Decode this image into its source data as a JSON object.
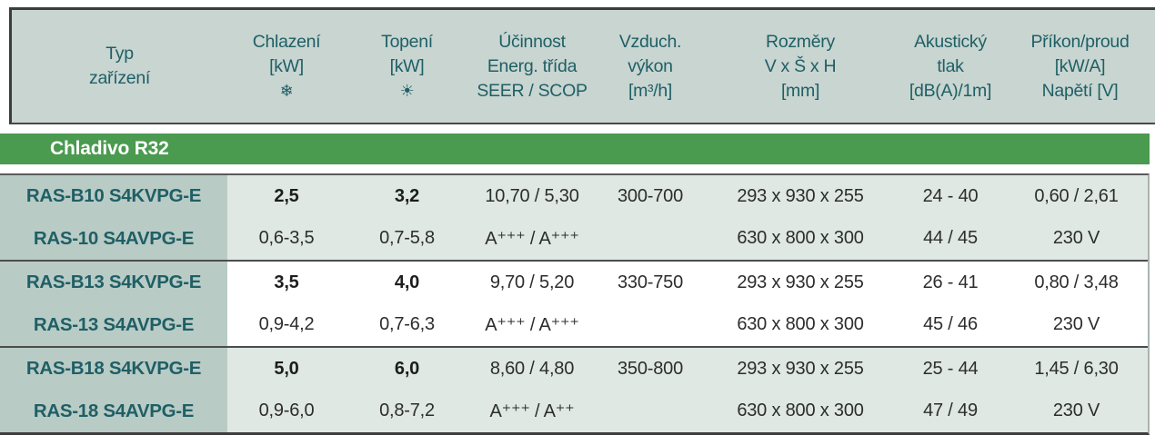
{
  "table": {
    "section_header": "Chladivo R32",
    "columns": [
      {
        "id": "typ",
        "line1": "Typ",
        "line2": "zařízení",
        "line3": ""
      },
      {
        "id": "chlazeni",
        "line1": "Chlazení",
        "line2": "[kW]",
        "line3": "",
        "icon": "❄",
        "icon_name": "snowflake-icon"
      },
      {
        "id": "topeni",
        "line1": "Topení",
        "line2": "[kW]",
        "line3": "",
        "icon": "☀",
        "icon_name": "sun-icon"
      },
      {
        "id": "ucinnost",
        "line1": "Účinnost",
        "line2": "Energ. třída",
        "line3": "SEER / SCOP"
      },
      {
        "id": "vzduch",
        "line1": "Vzduch.",
        "line2": "výkon",
        "line3": "[m³/h]"
      },
      {
        "id": "rozmery",
        "line1": "Rozměry",
        "line2": "V x Š x H",
        "line3": "[mm]"
      },
      {
        "id": "akusticky",
        "line1": "Akustický",
        "line2": "tlak",
        "line3": "[dB(A)/1m]"
      },
      {
        "id": "prikon",
        "line1": "Příkon/proud",
        "line2": "[kW/A]",
        "line3": "Napětí [V]"
      }
    ],
    "rows": [
      {
        "model": "RAS-B10 S4KVPG-E",
        "chlazeni": "2,5",
        "topeni": "3,2",
        "ucinnost": "10,70 / 5,30",
        "vzduch": "300-700",
        "rozmery": "293 x 930 x 255",
        "akusticky": "24 - 40",
        "prikon": "0,60 / 2,61"
      },
      {
        "model": "RAS-10 S4AVPG-E",
        "chlazeni": "0,6-3,5",
        "topeni": "0,7-5,8",
        "ucinnost": "A⁺⁺⁺ / A⁺⁺⁺",
        "vzduch": "",
        "rozmery": "630 x 800 x 300",
        "akusticky": "44 / 45",
        "prikon": "230 V"
      },
      {
        "model": "RAS-B13 S4KVPG-E",
        "chlazeni": "3,5",
        "topeni": "4,0",
        "ucinnost": "9,70 / 5,20",
        "vzduch": "330-750",
        "rozmery": "293 x 930 x 255",
        "akusticky": "26 - 41",
        "prikon": "0,80 / 3,48"
      },
      {
        "model": "RAS-13 S4AVPG-E",
        "chlazeni": "0,9-4,2",
        "topeni": "0,7-6,3",
        "ucinnost": "A⁺⁺⁺ / A⁺⁺⁺",
        "vzduch": "",
        "rozmery": "630 x 800 x 300",
        "akusticky": "45 / 46",
        "prikon": "230 V"
      },
      {
        "model": "RAS-B18 S4KVPG-E",
        "chlazeni": "5,0",
        "topeni": "6,0",
        "ucinnost": "8,60 / 4,80",
        "vzduch": "350-800",
        "rozmery": "293 x 930 x 255",
        "akusticky": "25 - 44",
        "prikon": "1,45 / 6,30"
      },
      {
        "model": "RAS-18 S4AVPG-E",
        "chlazeni": "0,9-6,0",
        "topeni": "0,8-7,2",
        "ucinnost": "A⁺⁺⁺ / A⁺⁺",
        "vzduch": "",
        "rozmery": "630 x 800 x 300",
        "akusticky": "47 / 49",
        "prikon": "230 V"
      }
    ],
    "colors": {
      "header_bg": "#c8d5d0",
      "teal_text": "#1f5f66",
      "section_green": "#4a9a4f",
      "model_col_bg": "#b9cbc5",
      "tint_row_bg": "#dfe8e3",
      "border_dark": "#3d3d3d"
    }
  }
}
